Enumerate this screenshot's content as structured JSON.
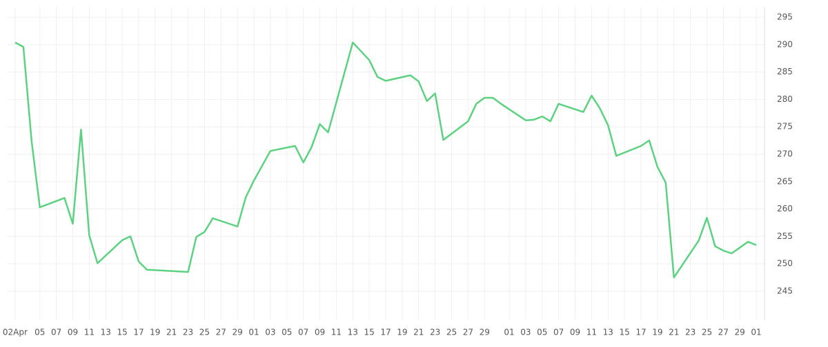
{
  "chart_data": {
    "type": "line",
    "x": [
      "Apr 02",
      "Apr 03",
      "Apr 04",
      "Apr 05",
      "Apr 08",
      "Apr 09",
      "Apr 10",
      "Apr 11",
      "Apr 12",
      "Apr 15",
      "Apr 16",
      "Apr 17",
      "Apr 18",
      "Apr 23",
      "Apr 24",
      "Apr 25",
      "Apr 26",
      "Apr 29",
      "Apr 30",
      "May 01",
      "May 03",
      "May 06",
      "May 07",
      "May 08",
      "May 09",
      "May 10",
      "May 13",
      "May 15",
      "May 16",
      "May 17",
      "May 20",
      "May 21",
      "May 22",
      "May 23",
      "May 24",
      "May 27",
      "May 28",
      "May 29",
      "May 30",
      "May 31",
      "Jun 03",
      "Jun 04",
      "Jun 05",
      "Jun 06",
      "Jun 07",
      "Jun 10",
      "Jun 11",
      "Jun 12",
      "Jun 13",
      "Jun 14",
      "Jun 17",
      "Jun 18",
      "Jun 19",
      "Jun 20",
      "Jun 21",
      "Jun 24",
      "Jun 25",
      "Jun 26",
      "Jun 27",
      "Jun 28",
      "Jun 30",
      "Jul 01"
    ],
    "series": [
      {
        "color": "#5ad27f",
        "values": [
          290.4,
          289.6,
          272.4,
          260.3,
          262.0,
          257.3,
          274.5,
          255.2,
          250.1,
          254.3,
          255.0,
          250.4,
          248.9,
          248.5,
          254.9,
          255.8,
          258.3,
          256.8,
          262.1,
          265.2,
          270.6,
          271.5,
          268.5,
          271.3,
          275.5,
          274.0,
          290.4,
          287.2,
          284.1,
          283.4,
          284.4,
          283.3,
          279.7,
          281.1,
          272.6,
          276.0,
          279.2,
          280.3,
          280.3,
          279.2,
          276.2,
          276.3,
          276.9,
          276.0,
          279.2,
          277.7,
          280.7,
          278.4,
          275.3,
          269.7,
          271.5,
          272.5,
          267.7,
          264.8,
          247.5,
          254.2,
          258.4,
          253.2,
          252.4,
          251.9,
          254.0,
          253.4
        ]
      }
    ],
    "xlim": [
      "Apr 01",
      "Jul 02"
    ],
    "xticks": [
      {
        "value": "Apr 02",
        "label": "02Apr"
      },
      {
        "value": "Apr 05",
        "label": "05"
      },
      {
        "value": "Apr 07",
        "label": "07"
      },
      {
        "value": "Apr 09",
        "label": "09"
      },
      {
        "value": "Apr 11",
        "label": "11"
      },
      {
        "value": "Apr 13",
        "label": "13"
      },
      {
        "value": "Apr 15",
        "label": "15"
      },
      {
        "value": "Apr 17",
        "label": "17"
      },
      {
        "value": "Apr 19",
        "label": "19"
      },
      {
        "value": "Apr 21",
        "label": "21"
      },
      {
        "value": "Apr 23",
        "label": "23"
      },
      {
        "value": "Apr 25",
        "label": "25"
      },
      {
        "value": "Apr 27",
        "label": "27"
      },
      {
        "value": "Apr 29",
        "label": "29"
      },
      {
        "value": "May 01",
        "label": "01"
      },
      {
        "value": "May 03",
        "label": "03"
      },
      {
        "value": "May 05",
        "label": "05"
      },
      {
        "value": "May 07",
        "label": "07"
      },
      {
        "value": "May 09",
        "label": "09"
      },
      {
        "value": "May 11",
        "label": "11"
      },
      {
        "value": "May 13",
        "label": "13"
      },
      {
        "value": "May 15",
        "label": "15"
      },
      {
        "value": "May 17",
        "label": "17"
      },
      {
        "value": "May 19",
        "label": "19"
      },
      {
        "value": "May 21",
        "label": "21"
      },
      {
        "value": "May 23",
        "label": "23"
      },
      {
        "value": "May 25",
        "label": "25"
      },
      {
        "value": "May 27",
        "label": "27"
      },
      {
        "value": "May 29",
        "label": "29"
      },
      {
        "value": "Jun 01",
        "label": "01"
      },
      {
        "value": "Jun 03",
        "label": "03"
      },
      {
        "value": "Jun 05",
        "label": "05"
      },
      {
        "value": "Jun 07",
        "label": "07"
      },
      {
        "value": "Jun 09",
        "label": "09"
      },
      {
        "value": "Jun 11",
        "label": "11"
      },
      {
        "value": "Jun 13",
        "label": "13"
      },
      {
        "value": "Jun 15",
        "label": "15"
      },
      {
        "value": "Jun 17",
        "label": "17"
      },
      {
        "value": "Jun 19",
        "label": "19"
      },
      {
        "value": "Jun 21",
        "label": "21"
      },
      {
        "value": "Jun 23",
        "label": "23"
      },
      {
        "value": "Jun 25",
        "label": "25"
      },
      {
        "value": "Jun 27",
        "label": "27"
      },
      {
        "value": "Jun 29",
        "label": "29"
      },
      {
        "value": "Jul 01",
        "label": "01"
      }
    ],
    "ylim": [
      239.7,
      296.9
    ],
    "yticks": [
      245,
      250,
      255,
      260,
      265,
      270,
      275,
      280,
      285,
      290,
      295
    ],
    "grid": true
  }
}
